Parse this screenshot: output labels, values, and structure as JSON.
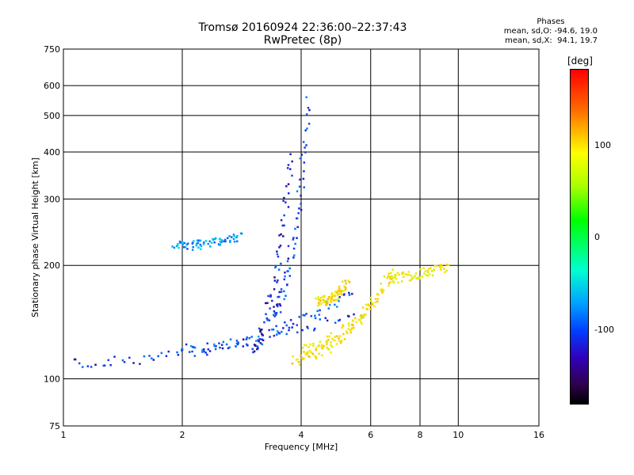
{
  "header": {
    "title_line1": "Tromsø 20160924 22:36:00–22:37:43",
    "title_line2": "RwPretec (8p)"
  },
  "stats": {
    "heading": "Phases",
    "line_o": "mean, sd,O: -94.6, 19.0",
    "line_x": "mean, sd,X:  94.1, 19.7"
  },
  "colorbar": {
    "label": "[deg]",
    "ticks": [
      "100",
      "0",
      "-100"
    ]
  },
  "chart_data": {
    "type": "scatter",
    "xlabel": "Frequency [MHz]",
    "ylabel": "Stationary phase Virtual Height [km]",
    "xscale": "log",
    "yscale": "log",
    "xlim": [
      1,
      16
    ],
    "ylim": [
      75,
      750
    ],
    "x_ticks": [
      "1",
      "2",
      "4",
      "6",
      "8",
      "10",
      "16"
    ],
    "y_ticks": [
      "75",
      "100",
      "200",
      "300",
      "400",
      "500",
      "600",
      "750"
    ],
    "x_grid": [
      2,
      4,
      6,
      8,
      10
    ],
    "y_grid": [
      100,
      200,
      300,
      400,
      500,
      600
    ],
    "grid": true,
    "colorbar_range": [
      -180,
      180
    ],
    "traces": [
      {
        "name": "",
        "x_start": 1.05,
        "x_end": 5.6,
        "h_start": 110,
        "h_end": 150,
        "phase": -95
      },
      {
        "name": "",
        "x_start": 2.0,
        "x_end": 5.4,
        "h_start": 120,
        "h_end": 170,
        "phase": -80
      },
      {
        "name": "",
        "x_start": 3.8,
        "x_end": 6.3,
        "h_start": 112,
        "h_end": 165,
        "phase": 100
      },
      {
        "name": "",
        "x_start": 4.0,
        "x_end": 6.8,
        "h_start": 120,
        "h_end": 190,
        "phase": 95
      },
      {
        "name": "",
        "x_start": 6.5,
        "x_end": 9.4,
        "h_start": 185,
        "h_end": 200,
        "phase": 90
      },
      {
        "name": "",
        "x_start": 3.0,
        "x_end": 3.8,
        "h_start": 120,
        "h_end": 400,
        "phase": -100
      },
      {
        "name": "",
        "x_start": 3.4,
        "x_end": 4.2,
        "h_start": 150,
        "h_end": 550,
        "phase": -90
      },
      {
        "name": "",
        "x_start": 1.9,
        "x_end": 2.8,
        "h_start": 225,
        "h_end": 240,
        "phase": -60
      },
      {
        "name": "",
        "x_start": 4.4,
        "x_end": 5.2,
        "h_start": 160,
        "h_end": 178,
        "phase": 100
      }
    ]
  }
}
